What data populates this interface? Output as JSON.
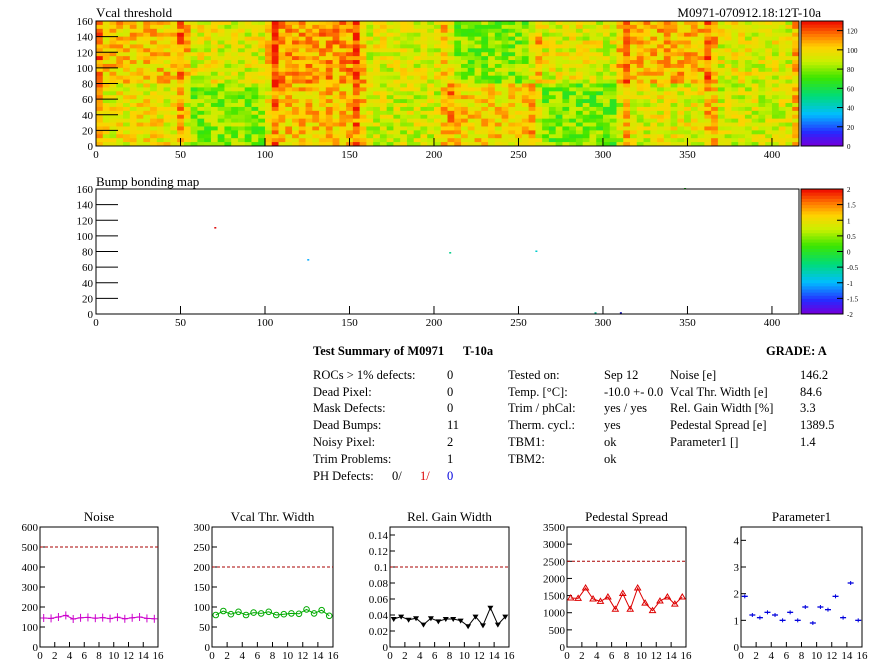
{
  "header": {
    "module_id": "M0971-070912.18:12T-10a"
  },
  "vcal_map": {
    "title": "Vcal threshold",
    "x_ticks": [
      "0",
      "50",
      "100",
      "150",
      "200",
      "250",
      "300",
      "350",
      "400"
    ],
    "y_ticks": [
      "0",
      "20",
      "40",
      "60",
      "80",
      "100",
      "120",
      "140",
      "160"
    ],
    "z_ticks": [
      "0",
      "20",
      "40",
      "60",
      "80",
      "100",
      "120"
    ]
  },
  "bump_map": {
    "title": "Bump bonding map",
    "x_ticks": [
      "0",
      "50",
      "100",
      "150",
      "200",
      "250",
      "300",
      "350",
      "400"
    ],
    "y_ticks": [
      "0",
      "20",
      "40",
      "60",
      "80",
      "100",
      "120",
      "140",
      "160"
    ],
    "z_ticks": [
      "-2",
      "-1.5",
      "-1",
      "-0.5",
      "0",
      "0.5",
      "1",
      "1.5",
      "2"
    ]
  },
  "summary": {
    "title": "Test Summary of M0971",
    "test_id": "T-10a",
    "grade": "GRADE:  A",
    "left": [
      {
        "label": "ROCs > 1% defects:",
        "value": "0"
      },
      {
        "label": "Dead Pixel:",
        "value": "0"
      },
      {
        "label": "Mask Defects:",
        "value": "0"
      },
      {
        "label": "Dead Bumps:",
        "value": "11"
      },
      {
        "label": "Noisy Pixel:",
        "value": "2"
      },
      {
        "label": "Trim Problems:",
        "value": "1"
      }
    ],
    "ph_label": "PH Defects:",
    "ph_values": [
      "0/",
      "1/",
      "0"
    ],
    "mid": [
      {
        "label": "Tested on:",
        "value": "Sep 12"
      },
      {
        "label": "Temp. [°C]:",
        "value": "-10.0 +- 0.0"
      },
      {
        "label": "Trim / phCal:",
        "value": "yes / yes"
      },
      {
        "label": "Therm. cycl.:",
        "value": "yes"
      },
      {
        "label": "TBM1:",
        "value": "ok"
      },
      {
        "label": "TBM2:",
        "value": "ok"
      }
    ],
    "right": [
      {
        "label": "Noise [e]",
        "value": "146.2"
      },
      {
        "label": "Vcal Thr. Width [e]",
        "value": "84.6"
      },
      {
        "label": "Rel. Gain Width [%]",
        "value": "3.3"
      },
      {
        "label": "Pedestal Spread [e]",
        "value": "1389.5"
      },
      {
        "label": "Parameter1 []",
        "value": "1.4"
      }
    ]
  },
  "colors": {
    "noise": "#cc00cc",
    "vcal": "#00aa00",
    "gain": "#000000",
    "pedestal": "#dd0000",
    "param": "#0000dd",
    "limit": "#aa0000"
  },
  "chart_data": [
    {
      "type": "line",
      "title": "Noise",
      "x": [
        0,
        1,
        2,
        3,
        4,
        5,
        6,
        7,
        8,
        9,
        10,
        11,
        12,
        13,
        14,
        15
      ],
      "values": [
        145,
        143,
        150,
        158,
        140,
        146,
        148,
        144,
        147,
        142,
        149,
        141,
        146,
        150,
        143,
        141
      ],
      "limit": 500,
      "ylim": [
        0,
        600
      ],
      "xlim": [
        0,
        16
      ],
      "yticks": [
        "0",
        "100",
        "200",
        "300",
        "400",
        "500",
        "600"
      ],
      "xticks": [
        "0",
        "2",
        "4",
        "6",
        "8",
        "10",
        "12",
        "14",
        "16"
      ]
    },
    {
      "type": "line",
      "title": "Vcal Thr. Width",
      "x": [
        0,
        1,
        2,
        3,
        4,
        5,
        6,
        7,
        8,
        9,
        10,
        11,
        12,
        13,
        14,
        15
      ],
      "values": [
        80,
        90,
        82,
        88,
        80,
        86,
        84,
        88,
        80,
        82,
        84,
        83,
        94,
        84,
        92,
        78
      ],
      "limit": 200,
      "ylim": [
        0,
        300
      ],
      "xlim": [
        0,
        16
      ],
      "yticks": [
        "0",
        "50",
        "100",
        "150",
        "200",
        "250",
        "300"
      ],
      "xticks": [
        "0",
        "2",
        "4",
        "6",
        "8",
        "10",
        "12",
        "14",
        "16"
      ]
    },
    {
      "type": "line",
      "title": "Rel. Gain Width",
      "x": [
        0,
        1,
        2,
        3,
        4,
        5,
        6,
        7,
        8,
        9,
        10,
        11,
        12,
        13,
        14,
        15
      ],
      "values": [
        0.035,
        0.038,
        0.034,
        0.036,
        0.028,
        0.036,
        0.032,
        0.035,
        0.035,
        0.033,
        0.026,
        0.038,
        0.027,
        0.049,
        0.028,
        0.038
      ],
      "limit": 0.1,
      "ylim": [
        0,
        0.15
      ],
      "xlim": [
        0,
        16
      ],
      "yticks": [
        "0",
        "0.02",
        "0.04",
        "0.06",
        "0.08",
        "0.1",
        "0.12",
        "0.14"
      ],
      "xticks": [
        "0",
        "2",
        "4",
        "6",
        "8",
        "10",
        "12",
        "14",
        "16"
      ]
    },
    {
      "type": "line",
      "title": "Pedestal Spread",
      "x": [
        0,
        1,
        2,
        3,
        4,
        5,
        6,
        7,
        8,
        9,
        10,
        11,
        12,
        13,
        14,
        15
      ],
      "values": [
        1430,
        1420,
        1720,
        1400,
        1330,
        1460,
        1100,
        1560,
        1100,
        1720,
        1280,
        1060,
        1340,
        1460,
        1250,
        1460
      ],
      "limit": 2500,
      "ylim": [
        0,
        3500
      ],
      "xlim": [
        0,
        16
      ],
      "yticks": [
        "0",
        "500",
        "1000",
        "1500",
        "2000",
        "2500",
        "3000",
        "3500"
      ],
      "xticks": [
        "0",
        "2",
        "4",
        "6",
        "8",
        "10",
        "12",
        "14",
        "16"
      ]
    },
    {
      "type": "scatter",
      "title": "Parameter1",
      "x": [
        0,
        1,
        2,
        3,
        4,
        5,
        6,
        7,
        8,
        9,
        10,
        11,
        12,
        13,
        14,
        15
      ],
      "values": [
        1.9,
        1.2,
        1.1,
        1.3,
        1.2,
        1.0,
        1.3,
        1.0,
        1.5,
        0.9,
        1.5,
        1.4,
        1.9,
        1.1,
        2.4,
        1.0
      ],
      "ylim": [
        0,
        4.5
      ],
      "xlim": [
        0,
        16
      ],
      "yticks": [
        "0",
        "1",
        "2",
        "3",
        "4"
      ],
      "xticks": [
        "0",
        "2",
        "4",
        "6",
        "8",
        "10",
        "12",
        "14",
        "16"
      ]
    }
  ]
}
